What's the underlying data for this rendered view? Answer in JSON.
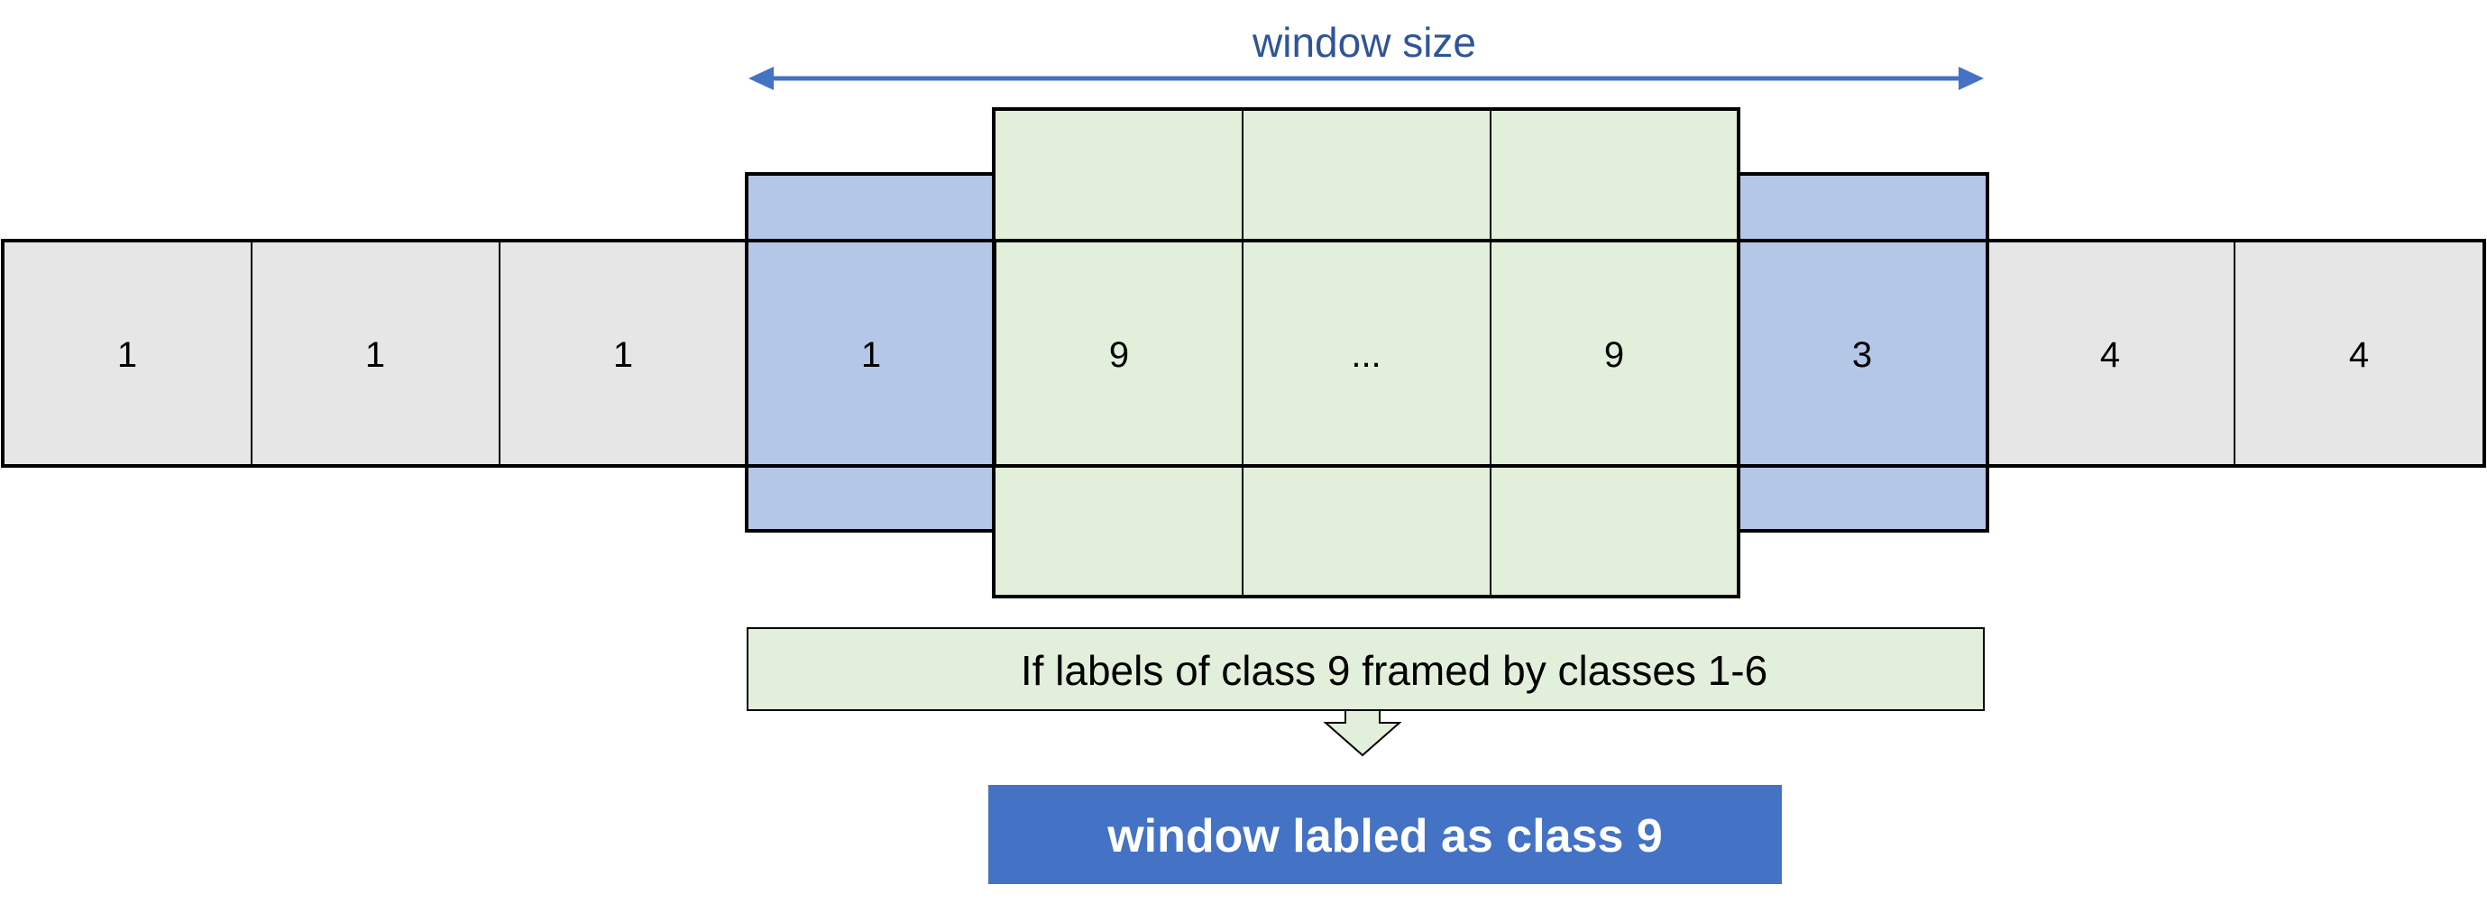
{
  "colors": {
    "gray_cell": "#E7E6E6",
    "blue_cell": "#B4C7E7",
    "green_cell": "#E2EFDA",
    "accent_blue": "#4472C4",
    "title_blue": "#2F5597",
    "border": "#000000"
  },
  "window_size": {
    "label": "window size",
    "arrow": "double-headed-arrow"
  },
  "sequence": {
    "cells": [
      {
        "label": "1",
        "kind": "outside"
      },
      {
        "label": "1",
        "kind": "outside"
      },
      {
        "label": "1",
        "kind": "outside"
      },
      {
        "label": "1",
        "kind": "frame"
      },
      {
        "label": "9",
        "kind": "window-core"
      },
      {
        "label": "...",
        "kind": "window-core"
      },
      {
        "label": "9",
        "kind": "window-core"
      },
      {
        "label": "3",
        "kind": "frame"
      },
      {
        "label": "4",
        "kind": "outside"
      },
      {
        "label": "4",
        "kind": "outside"
      }
    ]
  },
  "condition": {
    "text": "If labels of class 9 framed by classes 1-6"
  },
  "result": {
    "text": "window labled as class 9",
    "arrow": "down-arrow"
  }
}
